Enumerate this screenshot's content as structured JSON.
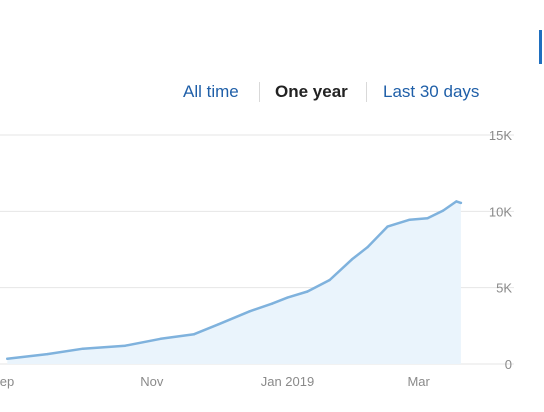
{
  "range_selector": {
    "all_time": "All time",
    "one_year": "One year",
    "last_30_days": "Last 30 days",
    "active": "one_year"
  },
  "colors": {
    "line": "#7fb2dd",
    "area": "#eaf4fc",
    "grid": "#e6e6e6",
    "link": "#1f5fa8",
    "active_tab": "#222222",
    "tick": "#8a8a8a"
  },
  "chart_data": {
    "type": "area",
    "title": "",
    "xlabel": "",
    "ylabel": "",
    "x_ticks": [
      "ep",
      "Nov",
      "Jan 2019",
      "Mar"
    ],
    "y_ticks": [
      "0",
      "5K",
      "10K",
      "15K"
    ],
    "ylim": [
      0,
      15000
    ],
    "grid": true,
    "x": [
      "2018-08-28",
      "2018-09-15",
      "2018-10-01",
      "2018-10-20",
      "2018-11-05",
      "2018-11-20",
      "2018-12-01",
      "2018-12-15",
      "2018-12-25",
      "2019-01-01",
      "2019-01-10",
      "2019-01-20",
      "2019-01-30",
      "2019-02-06",
      "2019-02-15",
      "2019-02-25",
      "2019-03-05",
      "2019-03-12",
      "2019-03-18",
      "2019-03-20"
    ],
    "series": [
      {
        "values": [
          350,
          650,
          1000,
          1200,
          1650,
          1950,
          2600,
          3450,
          3950,
          4350,
          4750,
          5500,
          6850,
          7650,
          9000,
          9450,
          9550,
          10050,
          10650,
          10550
        ]
      }
    ]
  }
}
